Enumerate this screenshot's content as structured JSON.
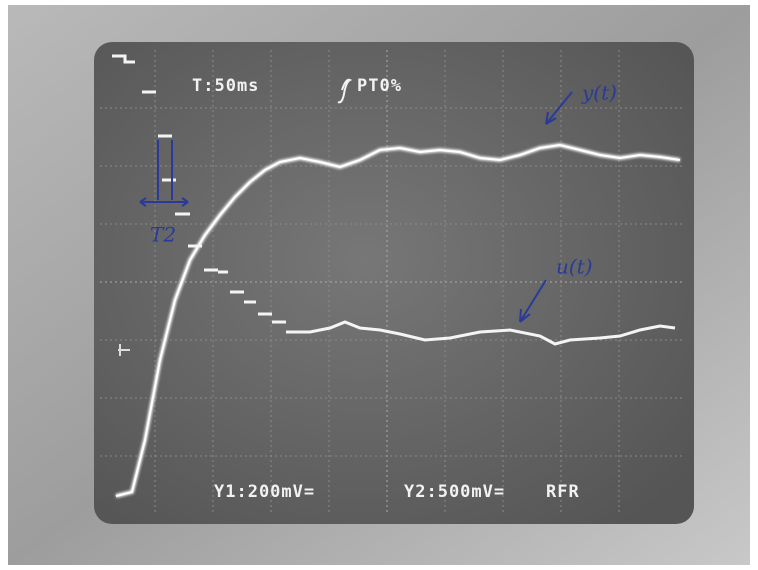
{
  "screen": {
    "timebase": "T:50ms",
    "trigger": "PT0%",
    "channel1": "Y1:200mV=",
    "channel2": "Y2:500mV=",
    "mode": "RFR"
  },
  "annotations": {
    "output": "y(t)",
    "input": "u(t)",
    "delay": "T2"
  }
}
